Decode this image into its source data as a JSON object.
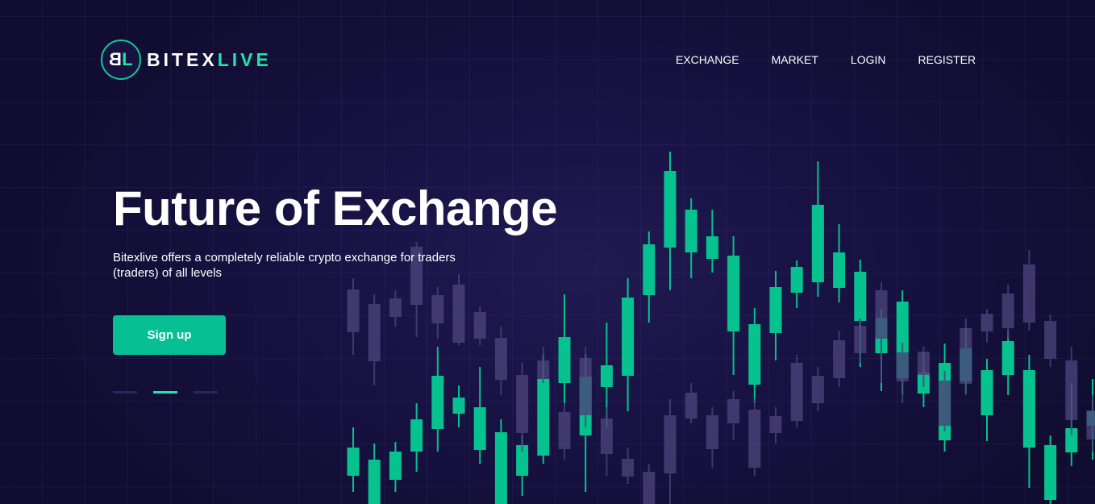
{
  "brand": {
    "mark_b": "B",
    "mark_l": "L",
    "name_white": "BITEX",
    "name_green": "LIVE"
  },
  "nav": [
    {
      "label": "EXCHANGE"
    },
    {
      "label": "MARKET"
    },
    {
      "label": "LOGIN"
    },
    {
      "label": "REGISTER"
    }
  ],
  "hero": {
    "title": "Future of Exchange",
    "description": "Bitexlive offers a completely reliable crypto exchange for traders (traders) of all levels",
    "cta": "Sign up"
  },
  "slider": {
    "count": 3,
    "active": 2
  },
  "colors": {
    "accent": "#06bf93",
    "background": "#110d31",
    "candle_up": "#06c28f",
    "candle_down": "#4b4279"
  }
}
